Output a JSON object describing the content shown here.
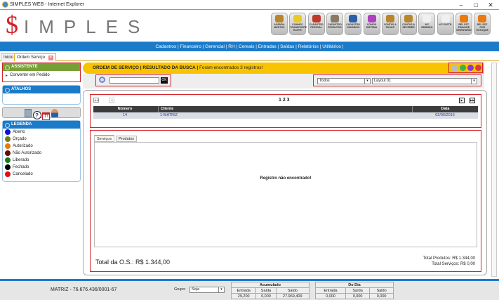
{
  "window": {
    "title": "SIMPLES WEB - Internet Explorer",
    "controls": [
      "minimize",
      "maximize",
      "close"
    ]
  },
  "logo": {
    "dollar": "$",
    "text": "IMPLES"
  },
  "toolbar": [
    {
      "label": "AGENDA MENTOS",
      "color": "#b8862c"
    },
    {
      "label": "CONHEC. TRANSPORTE ELETR.",
      "color": "#e8c92a"
    },
    {
      "label": "CADASTRO PESSOAL",
      "color": "#c0392b"
    },
    {
      "label": "CADASTRO PRODUTOS",
      "color": "#8a7b66"
    },
    {
      "label": "CADASTRO USUARIOS",
      "color": "#2c5ea8"
    },
    {
      "label": "CONFIG SISTEMA",
      "color": "#b040c0"
    },
    {
      "label": "CONTAS A PAGAR",
      "color": "#b8862c"
    },
    {
      "label": "CONTAS A RECEBER",
      "color": "#b8862c"
    },
    {
      "label": "N F EMISSÃO",
      "color": "#f0f0f0"
    },
    {
      "label": "N F ELETR.",
      "color": "#f0f0f0"
    },
    {
      "label": "REL EST. FINALIDE INVENTARIO",
      "color": "#e87a10"
    },
    {
      "label": "REL EST. POR ESTOQUE",
      "color": "#e87a10"
    }
  ],
  "nav": {
    "items": [
      "Cadastros",
      "Financeiro",
      "Gerencial",
      "RH",
      "Cereais",
      "Entradas",
      "Saídas",
      "Relatórios",
      "Utilitários"
    ]
  },
  "tabs": [
    {
      "label": "Inicio"
    },
    {
      "label": "Ordem Serviço"
    }
  ],
  "sidebar": {
    "assistente": {
      "title": "ASSISTENTE",
      "items": [
        "Converter em Pedido"
      ]
    },
    "atalhos": {
      "title": "ATALHOS"
    },
    "tools": [
      "calculator-icon",
      "help-icon",
      "calendar-icon",
      "user-icon"
    ],
    "legenda": {
      "title": "LEGENDA",
      "items": [
        {
          "label": "Aberto",
          "color": "#0a10e0"
        },
        {
          "label": "Orçado",
          "color": "#7a7a1a"
        },
        {
          "label": "Autorizado",
          "color": "#e87a10"
        },
        {
          "label": "Não Autorizado",
          "color": "#6a0a0a"
        },
        {
          "label": "Liberado",
          "color": "#1a7a1a"
        },
        {
          "label": "Fechado",
          "color": "#000000"
        },
        {
          "label": "Cancelado",
          "color": "#e01010"
        }
      ]
    }
  },
  "header": {
    "title": "ORDEM DE SERVIÇO | RESULTADO DA BUSCA |",
    "message": "Foram encontrados 3 registros!"
  },
  "search": {
    "value": "",
    "button": "OK"
  },
  "filters": {
    "status": "Todos",
    "layout": "Layout 01"
  },
  "pagination": {
    "pages": "1 2 3"
  },
  "grid": {
    "columns": [
      "Número",
      "Cliente",
      "Data"
    ],
    "rows": [
      [
        "14",
        "1-MATRIZ",
        "02/06/2016"
      ]
    ]
  },
  "detail": {
    "tabs": [
      "Serviços",
      "Produtos"
    ],
    "empty": "Registro não encontrado!",
    "total": "Total da O.S.: R$ 1.344,00",
    "total_produtos": "Total Produtos: R$ 1.344,00",
    "total_servicos": "Total Serviços: R$ 0,00"
  },
  "status": {
    "company": "MATRIZ - 76.676.436/0001-67",
    "grupo_label": "Grupo:",
    "grupo_value": "Soja",
    "acumulado": {
      "title": "Acumulado",
      "entrada": "29,200",
      "saida": "0,000",
      "saldo": "27.969,409"
    },
    "dodia": {
      "title": "Do Dia",
      "entrada": "0,000",
      "saida": "0,000",
      "saldo": "0,000"
    },
    "cols": [
      "Entrada",
      "Saída",
      "Saldo"
    ]
  }
}
